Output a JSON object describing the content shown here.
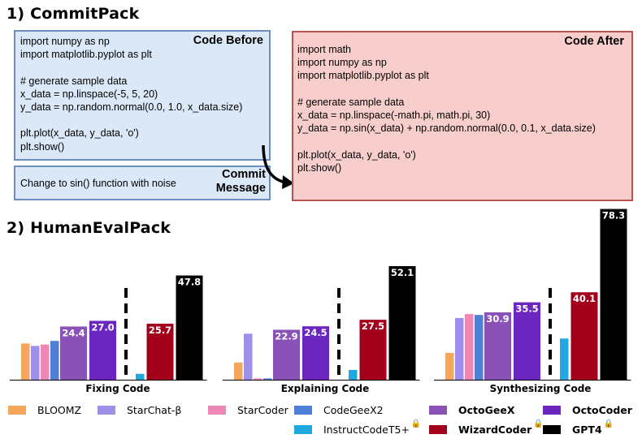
{
  "sections": {
    "commitpack_title": "1) CommitPack",
    "humanevalpack_title": "2) HumanEvalPack"
  },
  "code_before": {
    "label": "Code Before",
    "lines": [
      "import numpy as np",
      "import matplotlib.pyplot as plt",
      "",
      "# generate sample data",
      "x_data = np.linspace(-5, 5, 20)",
      "y_data = np.random.normal(0.0, 1.0, x_data.size)",
      "",
      "plt.plot(x_data, y_data, 'o')",
      "plt.show()"
    ]
  },
  "commit_message": {
    "label_line1": "Commit",
    "label_line2": "Message",
    "text": "Change to sin() function with noise"
  },
  "code_after": {
    "label": "Code After",
    "lines": [
      "import math",
      "import numpy as np",
      "import matplotlib.pyplot as plt",
      "",
      "# generate sample data",
      "x_data = np.linspace(-math.pi, math.pi, 30)",
      "y_data = np.sin(x_data) + np.random.normal(0.0, 0.1, x_data.size)",
      "",
      "plt.plot(x_data, y_data, 'o')",
      "plt.show()"
    ]
  },
  "chart_data": {
    "type": "bar",
    "series_names": [
      "BLOOMZ",
      "StarChat-β",
      "StarCoder",
      "CodeGeeX2",
      "OctoGeeX",
      "OctoCoder",
      "InstructCodeT5+",
      "WizardCoder",
      "GPT4"
    ],
    "colors": {
      "BLOOMZ": "#f3a65c",
      "StarChat-β": "#9e90ea",
      "StarCoder": "#ef86b6",
      "CodeGeeX2": "#4f7fd6",
      "OctoGeeX": "#8a52b6",
      "OctoCoder": "#6c26c0",
      "InstructCodeT5+": "#20a8e0",
      "WizardCoder": "#a3001b",
      "GPT4": "#000000"
    },
    "ylim": [
      0,
      80
    ],
    "panels": [
      {
        "title": "Fixing Code",
        "left_group": [
          {
            "series": "BLOOMZ",
            "value": 16.6
          },
          {
            "series": "StarChat-β",
            "value": 15.5
          },
          {
            "series": "StarCoder",
            "value": 16.1
          },
          {
            "series": "CodeGeeX2",
            "value": 17.8
          },
          {
            "series": "OctoGeeX",
            "value": 24.4,
            "label": "24.4"
          },
          {
            "series": "OctoCoder",
            "value": 27.0,
            "label": "27.0"
          }
        ],
        "right_group": [
          {
            "series": "InstructCodeT5+",
            "value": 2.7
          },
          {
            "series": "WizardCoder",
            "value": 25.7,
            "label": "25.7"
          },
          {
            "series": "GPT4",
            "value": 47.8,
            "label": "47.8"
          }
        ]
      },
      {
        "title": "Explaining Code",
        "left_group": [
          {
            "series": "BLOOMZ",
            "value": 7.9
          },
          {
            "series": "StarChat-β",
            "value": 21.1
          },
          {
            "series": "StarCoder",
            "value": 0.6
          },
          {
            "series": "CodeGeeX2",
            "value": 0.6
          },
          {
            "series": "OctoGeeX",
            "value": 22.9,
            "label": "22.9"
          },
          {
            "series": "OctoCoder",
            "value": 24.5,
            "label": "24.5"
          }
        ],
        "right_group": [
          {
            "series": "InstructCodeT5+",
            "value": 4.5
          },
          {
            "series": "WizardCoder",
            "value": 27.5,
            "label": "27.5"
          },
          {
            "series": "GPT4",
            "value": 52.1,
            "label": "52.1"
          }
        ]
      },
      {
        "title": "Synthesizing Code",
        "left_group": [
          {
            "series": "BLOOMZ",
            "value": 12.3
          },
          {
            "series": "StarChat-β",
            "value": 28.3
          },
          {
            "series": "StarCoder",
            "value": 30.1
          },
          {
            "series": "CodeGeeX2",
            "value": 29.7
          },
          {
            "series": "OctoGeeX",
            "value": 30.9,
            "label": "30.9"
          },
          {
            "series": "OctoCoder",
            "value": 35.5,
            "label": "35.5"
          }
        ],
        "right_group": [
          {
            "series": "InstructCodeT5+",
            "value": 18.9
          },
          {
            "series": "WizardCoder",
            "value": 40.1,
            "label": "40.1"
          },
          {
            "series": "GPT4",
            "value": 78.3,
            "label": "78.3"
          }
        ]
      }
    ],
    "locked_models": [
      "InstructCodeT5+",
      "WizardCoder",
      "GPT4"
    ],
    "bold_legend_models": [
      "OctoGeeX",
      "OctoCoder",
      "WizardCoder",
      "GPT4"
    ]
  },
  "legend": {
    "items": [
      {
        "name": "BLOOMZ",
        "bold": false,
        "locked": false
      },
      {
        "name": "StarChat-β",
        "bold": false,
        "locked": false
      },
      {
        "name": "StarCoder",
        "bold": false,
        "locked": false
      },
      {
        "name": "CodeGeeX2",
        "bold": false,
        "locked": false
      },
      {
        "name": "OctoGeeX",
        "bold": true,
        "locked": false
      },
      {
        "name": "OctoCoder",
        "bold": true,
        "locked": false
      },
      {
        "name": "InstructCodeT5+",
        "bold": false,
        "locked": true
      },
      {
        "name": "WizardCoder",
        "bold": true,
        "locked": true
      },
      {
        "name": "GPT4",
        "bold": true,
        "locked": true
      }
    ],
    "lock_icon": "lock-icon"
  }
}
